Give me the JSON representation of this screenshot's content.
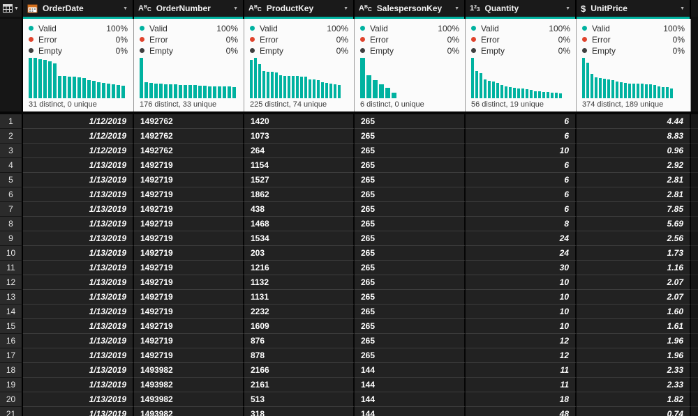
{
  "colors": {
    "accent_teal": "#00b2a0",
    "error_red": "#e0432d",
    "empty_gray": "#3f3f3f",
    "panel_white": "#fbfbfb"
  },
  "corner": {
    "icon": "table-grid-icon"
  },
  "quality_labels": {
    "valid": "Valid",
    "error": "Error",
    "empty": "Empty"
  },
  "columns": [
    {
      "name": "OrderDate",
      "type_icon": "calendar-icon",
      "align": "right",
      "valid_pct": "100%",
      "error_pct": "0%",
      "empty_pct": "0%",
      "caption": "31 distinct, 0 unique",
      "histogram": [
        100,
        100,
        96,
        94,
        92,
        87,
        56,
        55,
        54,
        53,
        52,
        50,
        44,
        43,
        40,
        38,
        36,
        35,
        33,
        31
      ]
    },
    {
      "name": "OrderNumber",
      "type_icon": "text-abc-icon",
      "align": "left",
      "valid_pct": "100%",
      "error_pct": "0%",
      "empty_pct": "0%",
      "caption": "176 distinct, 33 unique",
      "histogram": [
        100,
        40,
        38,
        37,
        36,
        35,
        34,
        34,
        33,
        33,
        32,
        32,
        31,
        31,
        30,
        30,
        30,
        29,
        29,
        28
      ]
    },
    {
      "name": "ProductKey",
      "type_icon": "text-abc-icon",
      "align": "left",
      "valid_pct": "100%",
      "error_pct": "0%",
      "empty_pct": "0%",
      "caption": "225 distinct, 74 unique",
      "histogram": [
        95,
        100,
        84,
        68,
        66,
        65,
        64,
        57,
        56,
        56,
        55,
        55,
        54,
        54,
        47,
        46,
        45,
        40,
        38,
        36,
        34,
        33
      ]
    },
    {
      "name": "SalespersonKey",
      "type_icon": "text-abc-icon",
      "align": "left",
      "valid_pct": "100%",
      "error_pct": "0%",
      "empty_pct": "0%",
      "caption": "6 distinct, 0 unique",
      "histogram": [
        100,
        57,
        44,
        34,
        26,
        14
      ]
    },
    {
      "name": "Quantity",
      "type_icon": "number-123-icon",
      "align": "right",
      "valid_pct": "100%",
      "error_pct": "0%",
      "empty_pct": "0%",
      "caption": "56 distinct, 19 unique",
      "histogram": [
        100,
        68,
        62,
        46,
        43,
        41,
        38,
        33,
        30,
        28,
        26,
        25,
        24,
        22,
        20,
        18,
        17,
        16,
        15,
        14,
        13,
        12
      ]
    },
    {
      "name": "UnitPrice",
      "type_icon": "currency-dollar-icon",
      "align": "right",
      "valid_pct": "100%",
      "error_pct": "0%",
      "empty_pct": "0%",
      "caption": "374 distinct, 189 unique",
      "histogram": [
        100,
        88,
        60,
        52,
        50,
        48,
        46,
        44,
        42,
        40,
        38,
        37,
        37,
        36,
        36,
        35,
        34,
        33,
        30,
        28,
        27,
        25
      ]
    }
  ],
  "rows": [
    {
      "n": "1",
      "cells": [
        "1/12/2019",
        "1492762",
        "1420",
        "265",
        "6",
        "4.44"
      ]
    },
    {
      "n": "2",
      "cells": [
        "1/12/2019",
        "1492762",
        "1073",
        "265",
        "6",
        "8.83"
      ]
    },
    {
      "n": "3",
      "cells": [
        "1/12/2019",
        "1492762",
        "264",
        "265",
        "10",
        "0.96"
      ]
    },
    {
      "n": "4",
      "cells": [
        "1/13/2019",
        "1492719",
        "1154",
        "265",
        "6",
        "2.92"
      ]
    },
    {
      "n": "5",
      "cells": [
        "1/13/2019",
        "1492719",
        "1527",
        "265",
        "6",
        "2.81"
      ]
    },
    {
      "n": "6",
      "cells": [
        "1/13/2019",
        "1492719",
        "1862",
        "265",
        "6",
        "2.81"
      ]
    },
    {
      "n": "7",
      "cells": [
        "1/13/2019",
        "1492719",
        "438",
        "265",
        "6",
        "7.85"
      ]
    },
    {
      "n": "8",
      "cells": [
        "1/13/2019",
        "1492719",
        "1468",
        "265",
        "8",
        "5.69"
      ]
    },
    {
      "n": "9",
      "cells": [
        "1/13/2019",
        "1492719",
        "1534",
        "265",
        "24",
        "2.56"
      ]
    },
    {
      "n": "10",
      "cells": [
        "1/13/2019",
        "1492719",
        "203",
        "265",
        "24",
        "1.73"
      ]
    },
    {
      "n": "11",
      "cells": [
        "1/13/2019",
        "1492719",
        "1216",
        "265",
        "30",
        "1.16"
      ]
    },
    {
      "n": "12",
      "cells": [
        "1/13/2019",
        "1492719",
        "1132",
        "265",
        "10",
        "2.07"
      ]
    },
    {
      "n": "13",
      "cells": [
        "1/13/2019",
        "1492719",
        "1131",
        "265",
        "10",
        "2.07"
      ]
    },
    {
      "n": "14",
      "cells": [
        "1/13/2019",
        "1492719",
        "2232",
        "265",
        "10",
        "1.60"
      ]
    },
    {
      "n": "15",
      "cells": [
        "1/13/2019",
        "1492719",
        "1609",
        "265",
        "10",
        "1.61"
      ]
    },
    {
      "n": "16",
      "cells": [
        "1/13/2019",
        "1492719",
        "876",
        "265",
        "12",
        "1.96"
      ]
    },
    {
      "n": "17",
      "cells": [
        "1/13/2019",
        "1492719",
        "878",
        "265",
        "12",
        "1.96"
      ]
    },
    {
      "n": "18",
      "cells": [
        "1/13/2019",
        "1493982",
        "2166",
        "144",
        "11",
        "2.33"
      ]
    },
    {
      "n": "19",
      "cells": [
        "1/13/2019",
        "1493982",
        "2161",
        "144",
        "11",
        "2.33"
      ]
    },
    {
      "n": "20",
      "cells": [
        "1/13/2019",
        "1493982",
        "513",
        "144",
        "18",
        "1.82"
      ]
    },
    {
      "n": "21",
      "cells": [
        "1/13/2019",
        "1493982",
        "318",
        "144",
        "48",
        "0.74"
      ]
    }
  ]
}
